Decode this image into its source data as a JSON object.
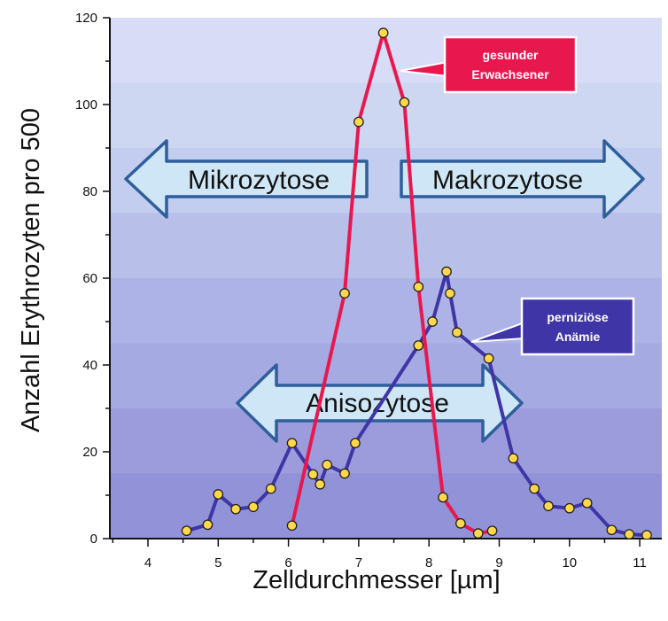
{
  "chart_data": {
    "type": "line",
    "xlabel": "Zelldurchmesser [µm]",
    "ylabel": "Anzahl Erythrozyten pro 500",
    "xlim": [
      3.5,
      11.2
    ],
    "ylim": [
      0,
      120
    ],
    "x_ticks": [
      4,
      5,
      6,
      7,
      8,
      9,
      10,
      11
    ],
    "y_ticks": [
      0,
      20,
      40,
      60,
      80,
      100,
      120
    ],
    "series": [
      {
        "name": "gesunder Erwachsener",
        "color": "#e8184f",
        "points": [
          [
            6.05,
            3
          ],
          [
            6.8,
            56.5
          ],
          [
            7.0,
            96
          ],
          [
            7.35,
            116.5
          ],
          [
            7.65,
            100.5
          ],
          [
            7.85,
            58
          ],
          [
            8.2,
            9.5
          ],
          [
            8.45,
            3.5
          ],
          [
            8.7,
            1.2
          ],
          [
            8.9,
            1.8
          ]
        ]
      },
      {
        "name": "perniziöse Anämie",
        "color": "#3f35a6",
        "points": [
          [
            4.55,
            1.8
          ],
          [
            4.85,
            3.2
          ],
          [
            5.0,
            10.2
          ],
          [
            5.25,
            6.8
          ],
          [
            5.5,
            7.3
          ],
          [
            5.75,
            11.5
          ],
          [
            6.05,
            22
          ],
          [
            6.35,
            14.8
          ],
          [
            6.45,
            12.5
          ],
          [
            6.55,
            17
          ],
          [
            6.8,
            15
          ],
          [
            6.95,
            22
          ],
          [
            7.85,
            44.5
          ],
          [
            8.05,
            50
          ],
          [
            8.25,
            61.5
          ],
          [
            8.3,
            56.5
          ],
          [
            8.4,
            47.5
          ],
          [
            8.85,
            41.5
          ],
          [
            9.2,
            18.5
          ],
          [
            9.5,
            11.5
          ],
          [
            9.7,
            7.5
          ],
          [
            10.0,
            7.0
          ],
          [
            10.25,
            8.2
          ],
          [
            10.6,
            2.0
          ],
          [
            10.85,
            1.0
          ],
          [
            11.1,
            0.8
          ]
        ]
      }
    ],
    "annotations": {
      "arrow_left": "Mikrozytose",
      "arrow_right": "Makrozytose",
      "arrow_double": "Anisozytose"
    },
    "colors": {
      "point_fill": "#ffd84a",
      "arrow_fill": "#cfe6f6",
      "arrow_stroke": "#2e5e9b"
    }
  }
}
